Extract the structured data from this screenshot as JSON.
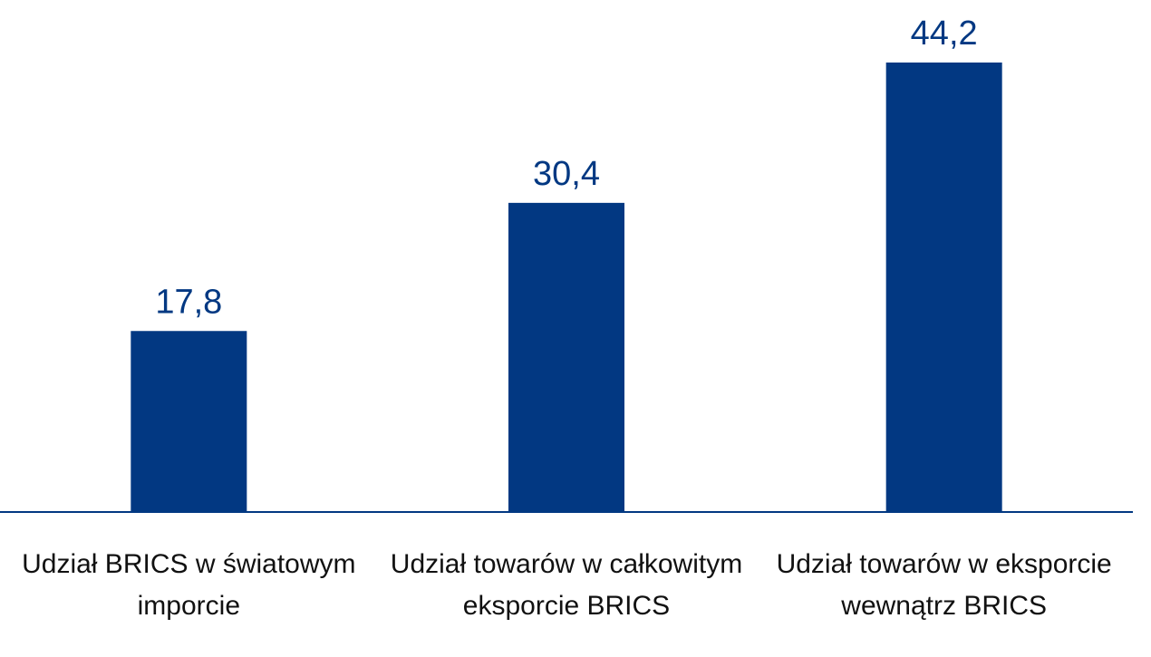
{
  "chart_data": {
    "type": "bar",
    "categories": [
      "Udział BRICS w światowym imporcie",
      "Udział towarów w całkowitym eksporcie BRICS",
      "Udział towarów w eksporcie wewnątrz BRICS"
    ],
    "values": [
      17.8,
      30.4,
      44.2
    ],
    "value_labels": [
      "17,8",
      "30,4",
      "44,2"
    ],
    "color": "#023882"
  }
}
